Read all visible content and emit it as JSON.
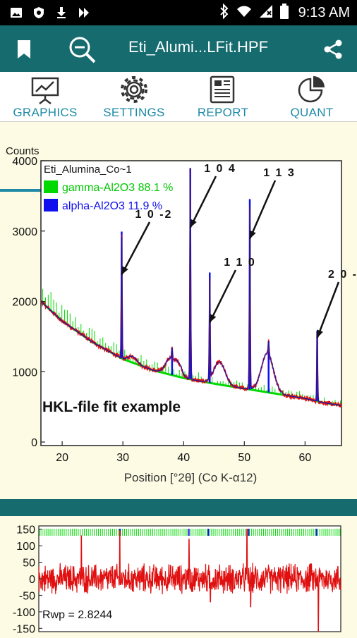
{
  "status_bar": {
    "time": "9:13 AM"
  },
  "app_bar": {
    "title": "Eti_Alumi...LFit.HPF"
  },
  "tabs": [
    {
      "label": "GRAPHICS",
      "icon": "presentation-chart-icon",
      "active": true
    },
    {
      "label": "SETTINGS",
      "icon": "gear-icon",
      "active": false
    },
    {
      "label": "REPORT",
      "icon": "newspaper-icon",
      "active": false
    },
    {
      "label": "QUANT",
      "icon": "pie-chart-icon",
      "active": false
    }
  ],
  "colors": {
    "accent": "#166b6f",
    "tab_text": "#1e8aa6",
    "background": "#fdfbe3",
    "observed": "#e01010",
    "calc": "#1a1aa8",
    "gamma": "#00d800",
    "alpha": "#1010ee"
  },
  "chart_data": [
    {
      "type": "line",
      "title": "",
      "ylabel": "Counts",
      "xlabel": "Position [°2θ] (Co K-α12)",
      "xlim": [
        16.5,
        66
      ],
      "ylim": [
        -50,
        4000
      ],
      "x_ticks": [
        20,
        30,
        40,
        50,
        60
      ],
      "y_ticks": [
        0,
        1000,
        2000,
        3000,
        4000
      ],
      "legend_title": "Eti_Alumina_Co~1",
      "legend": [
        {
          "name": "gamma-Al2O3 88.1 %",
          "color": "#00d800"
        },
        {
          "name": "alpha-Al2O3 11.9 %",
          "color": "#1010ee"
        }
      ],
      "annotation_text": "HKL-file fit example",
      "peak_labels": [
        {
          "label": "1 0 -2",
          "x": 29.8,
          "y": 2380
        },
        {
          "label": "1 0 4",
          "x": 41.1,
          "y": 3050
        },
        {
          "label": "1 1 0",
          "x": 44.3,
          "y": 1700
        },
        {
          "label": "1 1 3",
          "x": 50.9,
          "y": 2890
        },
        {
          "label": "2 0 -",
          "x": 62.0,
          "y": 1480
        }
      ],
      "background_points": {
        "x": [
          16.5,
          20,
          25,
          30,
          35,
          40,
          45,
          50,
          55,
          60,
          63,
          66
        ],
        "y": [
          2000,
          1720,
          1420,
          1180,
          1020,
          910,
          830,
          760,
          690,
          620,
          560,
          520
        ]
      },
      "broad_peaks": [
        {
          "center": 37.8,
          "height": 230,
          "width": 1.1
        },
        {
          "center": 39.2,
          "height": 160,
          "width": 0.8
        },
        {
          "center": 45.9,
          "height": 320,
          "width": 1.3
        },
        {
          "center": 53.8,
          "height": 560,
          "width": 1.4
        },
        {
          "center": 31.6,
          "height": 90,
          "width": 1.0
        }
      ],
      "sharp_peaks": [
        {
          "center": 29.8,
          "height": 1800
        },
        {
          "center": 41.1,
          "height": 3000
        },
        {
          "center": 44.3,
          "height": 1500
        },
        {
          "center": 50.9,
          "height": 2700
        },
        {
          "center": 62.0,
          "height": 1000
        },
        {
          "center": 38.1,
          "height": 150
        },
        {
          "center": 54.0,
          "height": 180
        }
      ],
      "gamma_fraction": 0.12
    },
    {
      "type": "line",
      "title": "",
      "xlim": [
        16.5,
        66
      ],
      "ylim": [
        -160,
        160
      ],
      "y_ticks": [
        150,
        100,
        50,
        0,
        -50,
        -100,
        -150
      ],
      "annotation_text": "Rwp = 2.8244",
      "noise_amplitude": 35,
      "spikes": [
        {
          "x": 23.5,
          "y": 130
        },
        {
          "x": 29.8,
          "y": 145
        },
        {
          "x": 41.1,
          "y": 120
        },
        {
          "x": 44.6,
          "y": -70
        },
        {
          "x": 50.6,
          "y": 150
        },
        {
          "x": 51.2,
          "y": -85
        },
        {
          "x": 62.3,
          "y": -160
        },
        {
          "x": 61.0,
          "y": 45
        }
      ]
    }
  ]
}
